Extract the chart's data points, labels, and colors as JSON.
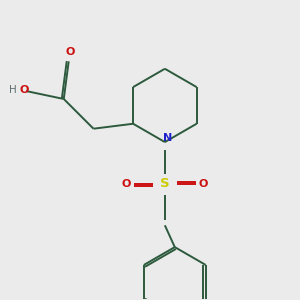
{
  "bg_color": "#ebebeb",
  "bond_color": "#2d5a3d",
  "N_color": "#2020cc",
  "O_color": "#cc1010",
  "S_color": "#cccc00",
  "H_color": "#607070",
  "C_color": "#2d5a3d",
  "bond_width": 1.4,
  "fig_w": 3.0,
  "fig_h": 3.0,
  "dpi": 100,
  "xlim": [
    0,
    3.0
  ],
  "ylim": [
    0,
    3.0
  ]
}
